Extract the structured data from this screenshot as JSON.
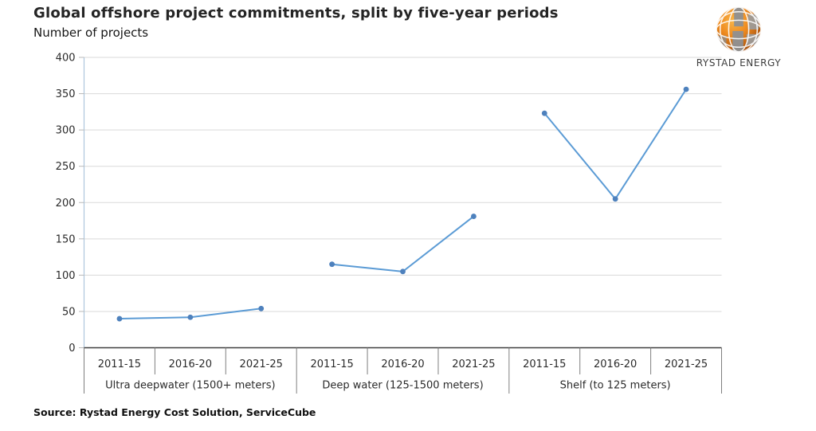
{
  "header": {
    "title": "Global offshore project commitments, split by five-year periods",
    "subtitle": "Number of projects"
  },
  "logo": {
    "brand": "RYSTAD ENERGY",
    "globe_orange": "#E8821E",
    "globe_orange_light": "#F6A623",
    "globe_orange_dark": "#9E4A0C",
    "globe_gray": "#8E9093"
  },
  "footer": {
    "source": "Source: Rystad Energy Cost Solution, ServiceCube"
  },
  "chart_data": {
    "type": "line",
    "title": "Global offshore project commitments, split by five-year periods",
    "ylabel": "Number of projects",
    "categories": [
      "2011-15",
      "2016-20",
      "2021-25"
    ],
    "groups": [
      {
        "label": "Ultra deepwater (1500+ meters)",
        "values": [
          40,
          42,
          54
        ]
      },
      {
        "label": "Deep water (125-1500 meters)",
        "values": [
          115,
          105,
          181
        ]
      },
      {
        "label": "Shelf (to 125 meters)",
        "values": [
          323,
          205,
          356
        ]
      }
    ],
    "ylim": [
      0,
      400
    ],
    "yticks": [
      0,
      50,
      100,
      150,
      200,
      250,
      300,
      350,
      400
    ],
    "grid": "horizontal",
    "legend": "none",
    "line_color": "#5B9BD5",
    "marker_color": "#4E81BD",
    "axis_line_color": "#AEC6DC",
    "tick_color": "#B8B8B8",
    "gridline_color": "#D9D9D9",
    "baseline_color": "#3F3F3F",
    "table_border_color": "#7F7F7F",
    "label_color": "#2A2A2A"
  }
}
